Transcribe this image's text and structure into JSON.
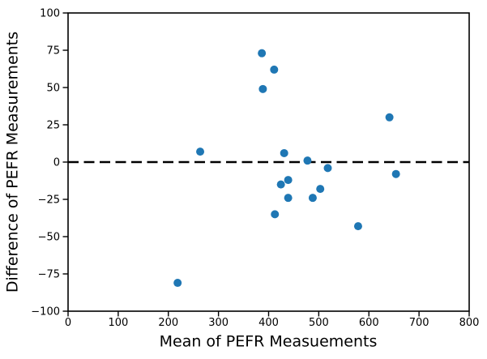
{
  "chart_data": {
    "type": "scatter",
    "title": "",
    "xlabel": "Mean of PEFR Measuements",
    "ylabel": "Difference of PEFR Measurements",
    "xlim": [
      0,
      800
    ],
    "ylim": [
      -100,
      100
    ],
    "xticks": [
      0,
      100,
      200,
      300,
      400,
      500,
      600,
      700,
      800
    ],
    "yticks": [
      -100,
      -75,
      -50,
      -25,
      0,
      25,
      50,
      75,
      100
    ],
    "grid": false,
    "legend": null,
    "marker": {
      "shape": "circle",
      "color": "#1f77b4",
      "radius_px": 5
    },
    "reference_line": {
      "y": 0,
      "style": "dashed",
      "color": "#000000"
    },
    "axis_color": "#000000",
    "background_color": "#ffffff",
    "points": [
      [
        503,
        -18
      ],
      [
        412.5,
        -35
      ],
      [
        518,
        -4
      ],
      [
        431,
        6
      ],
      [
        488,
        -24
      ],
      [
        578.5,
        -43
      ],
      [
        388.5,
        49
      ],
      [
        411,
        62
      ],
      [
        654,
        -8
      ],
      [
        439,
        -12
      ],
      [
        424.5,
        -15
      ],
      [
        641,
        30
      ],
      [
        263.5,
        7
      ],
      [
        477.5,
        1
      ],
      [
        218.5,
        -81
      ],
      [
        386.5,
        73
      ],
      [
        439,
        -24
      ]
    ]
  }
}
